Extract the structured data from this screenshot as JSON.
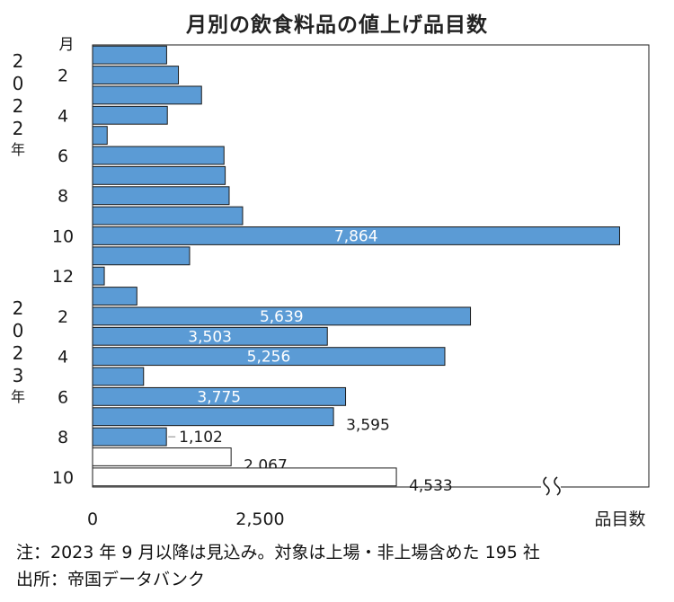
{
  "chart_data": {
    "type": "bar",
    "orientation": "horizontal",
    "title": "月別の飲食料品の値上げ品目数",
    "month_header": "月",
    "year_labels": [
      {
        "chars": [
          "2",
          "0",
          "2",
          "2",
          "年"
        ]
      },
      {
        "chars": [
          "2",
          "0",
          "2",
          "3",
          "年"
        ]
      }
    ],
    "categories": [
      "2022-1",
      "2022-2",
      "2022-3",
      "2022-4",
      "2022-5",
      "2022-6",
      "2022-7",
      "2022-8",
      "2022-9",
      "2022-10",
      "2022-11",
      "2022-12",
      "2023-1",
      "2023-2",
      "2023-3",
      "2023-4",
      "2023-5",
      "2023-6",
      "2023-7",
      "2023-8",
      "2023-9",
      "2023-10"
    ],
    "month_tick_labels": [
      "",
      "2",
      "",
      "4",
      "",
      "6",
      "",
      "8",
      "",
      "10",
      "",
      "12",
      "",
      "2",
      "",
      "4",
      "",
      "6",
      "",
      "8",
      "",
      "10"
    ],
    "values": [
      1105,
      1281,
      1626,
      1116,
      218,
      1961,
      1979,
      2038,
      2239,
      7864,
      1448,
      175,
      661,
      5639,
      3503,
      5256,
      761,
      3775,
      3595,
      1102,
      2067,
      4533
    ],
    "value_labels": [
      "",
      "",
      "",
      "",
      "",
      "",
      "",
      "",
      "",
      "7,864",
      "",
      "",
      "",
      "5,639",
      "3,503",
      "5,256",
      "",
      "3,775",
      "3,595",
      "1,102",
      "2,067",
      "4,533"
    ],
    "label_inside": [
      false,
      false,
      false,
      false,
      false,
      false,
      false,
      false,
      false,
      true,
      false,
      false,
      false,
      true,
      true,
      true,
      false,
      true,
      false,
      false,
      false,
      false
    ],
    "forecast": [
      false,
      false,
      false,
      false,
      false,
      false,
      false,
      false,
      false,
      false,
      false,
      false,
      false,
      false,
      false,
      false,
      false,
      false,
      false,
      false,
      true,
      true
    ],
    "xlim": [
      0,
      8300
    ],
    "x_ticks": [
      0,
      2500
    ],
    "x_tick_labels": [
      "0",
      "2,500"
    ],
    "xlabel": "品目数",
    "colors": {
      "bar": "#5b9bd5",
      "bar_edge": "#1a1a1a",
      "forecast_fill": "#ffffff",
      "text_inside": "#ffffff"
    }
  },
  "notes": {
    "note": "注：2023 年 9 月以降は見込み。対象は上場・非上場含めた 195 社",
    "source": "出所：帝国データバンク"
  }
}
